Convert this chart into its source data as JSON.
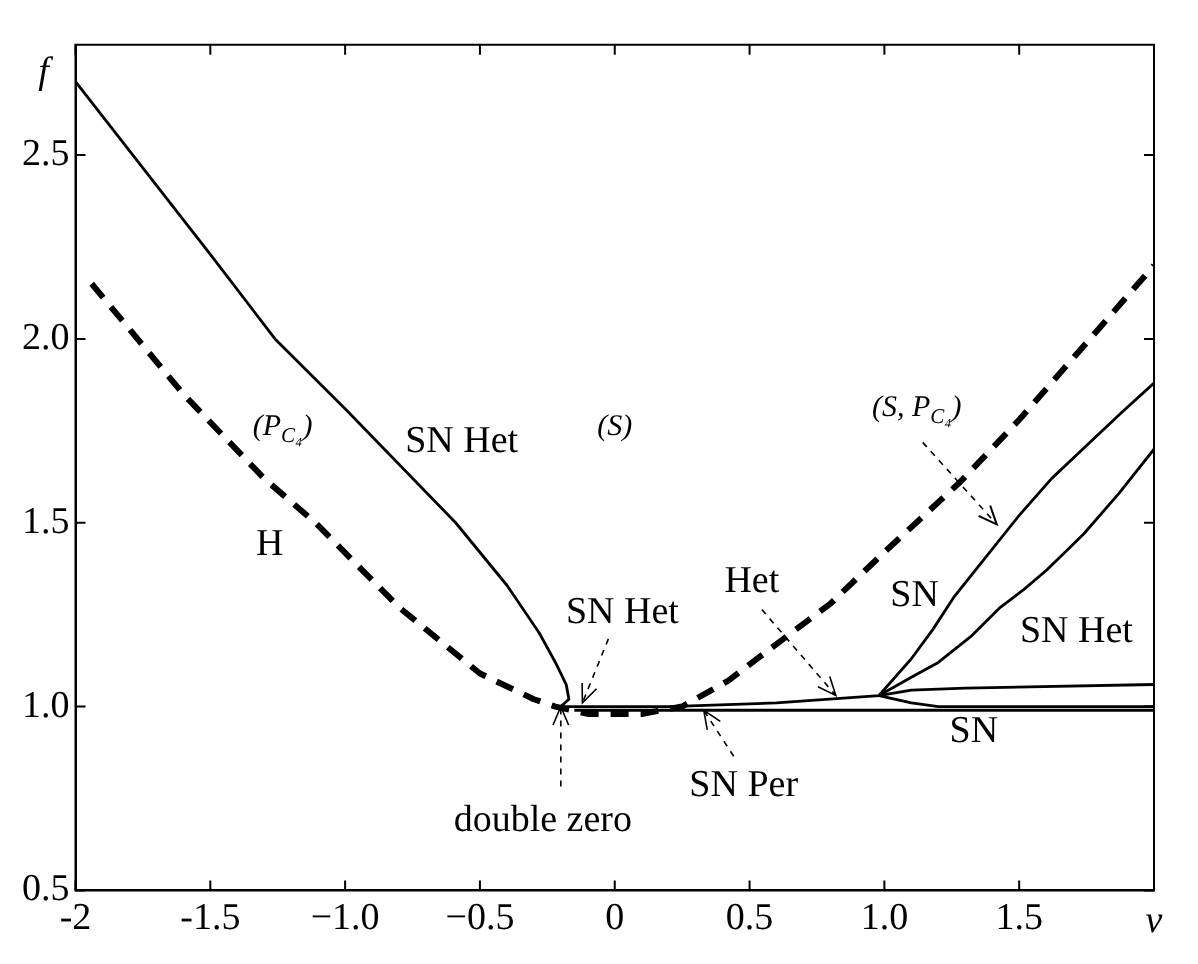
{
  "chart_data": {
    "type": "line",
    "xlabel": "ν",
    "ylabel": "f",
    "xlim": [
      -2,
      2
    ],
    "ylim": [
      0.5,
      2.8
    ],
    "xticks": [
      -2,
      -1.5,
      {
        "value": -1,
        "label": "−1.0"
      },
      {
        "value": -0.5,
        "label": "−0.5"
      },
      0,
      0.5,
      {
        "value": 1,
        "label": "1.0"
      },
      1.5,
      {
        "value": 2,
        "label": null
      }
    ],
    "yticks": [
      0.5,
      {
        "value": 1,
        "label": "1.0"
      },
      1.5,
      {
        "value": 2,
        "label": "2.0"
      },
      2.5
    ],
    "grid": false,
    "legend": false,
    "marker": "none",
    "series": [
      {
        "color": "#000000",
        "line_style": "solid",
        "x": [
          -2,
          -1.5,
          -1.26,
          -1.0,
          -0.59,
          -0.4,
          -0.28,
          -0.22,
          -0.18,
          -0.17,
          -0.2
        ],
        "values": [
          2.7,
          2.23,
          2.0,
          1.81,
          1.5,
          1.33,
          1.2,
          1.12,
          1.06,
          1.02,
          1.0
        ]
      },
      {
        "color": "#000000",
        "line_style": "dashed",
        "x": [
          -1.94,
          -1.6,
          -1.3,
          -1.11,
          -0.8,
          -0.5,
          -0.3,
          -0.22,
          -0.1,
          0.1,
          0.25,
          0.42,
          0.6,
          0.8,
          1.0,
          1.28,
          1.5,
          1.81,
          2.0
        ],
        "values": [
          2.15,
          1.85,
          1.62,
          1.5,
          1.27,
          1.09,
          1.02,
          1.0,
          0.98,
          0.98,
          1.0,
          1.07,
          1.17,
          1.28,
          1.42,
          1.61,
          1.78,
          2.04,
          2.2
        ]
      },
      {
        "color": "#000000",
        "line_style": "solid",
        "x": [
          -0.2,
          0.2,
          0.6,
          0.98,
          1.04,
          1.1,
          1.18,
          1.26,
          1.38,
          1.5,
          1.62,
          1.75,
          1.88,
          2.0
        ],
        "values": [
          1.0,
          1.0,
          1.01,
          1.03,
          1.08,
          1.13,
          1.21,
          1.3,
          1.41,
          1.52,
          1.62,
          1.71,
          1.8,
          1.88
        ]
      },
      {
        "color": "#000000",
        "line_style": "solid",
        "x": [
          0.98,
          1.1,
          1.2,
          1.32,
          1.43,
          1.52,
          1.6,
          1.67,
          1.74,
          1.87,
          2.0
        ],
        "values": [
          1.03,
          1.08,
          1.12,
          1.19,
          1.27,
          1.32,
          1.37,
          1.42,
          1.47,
          1.58,
          1.7
        ]
      },
      {
        "color": "#000000",
        "line_style": "solid",
        "x": [
          0.98,
          1.1,
          1.3,
          2.0
        ],
        "values": [
          1.03,
          1.045,
          1.05,
          1.06
        ]
      },
      {
        "color": "#000000",
        "line_style": "solid",
        "x": [
          0.98,
          1.1,
          1.2,
          2.0
        ],
        "values": [
          1.03,
          1.01,
          1.0,
          1.0
        ]
      },
      {
        "color": "#000000",
        "line_style": "solid",
        "x": [
          -0.15,
          0.5,
          2.0
        ],
        "values": [
          0.99,
          0.99,
          0.99
        ]
      }
    ],
    "annotations": [
      "(S)",
      "(P$_{C₄}$)",
      "SN Het",
      "H",
      {
        "text": "SN Het",
        "x": -0.12,
        "y": 1.01
      },
      {
        "text": "double zero",
        "x": -0.2,
        "y": 1.0
      },
      {
        "text": "SN Per",
        "x": 0.33,
        "y": 0.99
      },
      {
        "text": "Het",
        "x": 0.82,
        "y": 1.03
      },
      "(S, P$_{C₄}$)",
      "SN",
      "SN Het",
      "SN"
    ]
  }
}
